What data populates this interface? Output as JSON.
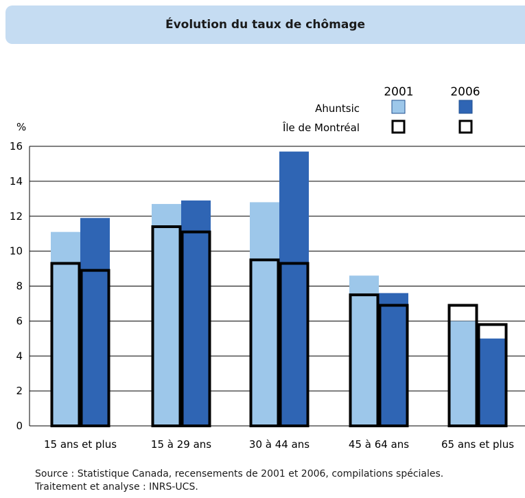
{
  "chart_data": {
    "type": "bar",
    "title": "Évolution du taux de chômage",
    "ylabel": "%",
    "xlabel": "",
    "ylim": [
      0,
      16
    ],
    "yticks": [
      0,
      2,
      4,
      6,
      8,
      10,
      12,
      14,
      16
    ],
    "grid": true,
    "legend_position": "top-right",
    "categories": [
      "15 ans et plus",
      "15 à 29 ans",
      "30 à 44 ans",
      "45 à 64 ans",
      "65 ans et plus"
    ],
    "legend": {
      "years": [
        "2001",
        "2006"
      ],
      "rows": [
        "Ahuntsic",
        "Île de Montréal"
      ]
    },
    "series": [
      {
        "name": "Ahuntsic 2001",
        "year": "2001",
        "region": "Ahuntsic",
        "color": "#9dc7ea",
        "style": "fill",
        "values": [
          11.1,
          12.7,
          12.8,
          8.6,
          6.0
        ]
      },
      {
        "name": "Ahuntsic 2006",
        "year": "2006",
        "region": "Ahuntsic",
        "color": "#2f65b4",
        "style": "fill",
        "values": [
          11.9,
          12.9,
          15.7,
          7.6,
          5.0
        ]
      },
      {
        "name": "Île de Montréal 2001",
        "year": "2001",
        "region": "Île de Montréal",
        "color": "#000000",
        "style": "outline",
        "values": [
          9.3,
          11.4,
          9.5,
          7.5,
          6.9
        ]
      },
      {
        "name": "Île de Montréal 2006",
        "year": "2006",
        "region": "Île de Montréal",
        "color": "#000000",
        "style": "outline",
        "values": [
          8.9,
          11.1,
          9.3,
          6.9,
          5.8
        ]
      }
    ]
  },
  "source_lines": [
    "Source : Statistique Canada, recensements de 2001 et 2006, compilations spéciales.",
    "Traitement et analyse : INRS-UCS."
  ]
}
